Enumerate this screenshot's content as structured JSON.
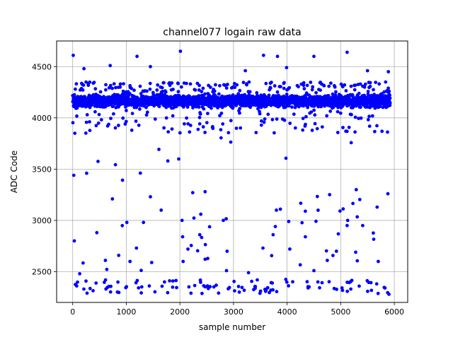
{
  "chart_data": {
    "type": "scatter",
    "title": "channel077 logain raw data",
    "xlabel": "sample number",
    "ylabel": "ADC Code",
    "xlim": [
      -300,
      6250
    ],
    "ylim": [
      2200,
      4750
    ],
    "xticks": [
      0,
      1000,
      2000,
      3000,
      4000,
      5000,
      6000
    ],
    "yticks": [
      2500,
      3000,
      3500,
      4000,
      4500
    ],
    "xtick_labels": [
      "0",
      "1000",
      "2000",
      "3000",
      "4000",
      "5000",
      "6000"
    ],
    "ytick_labels": [
      "2500",
      "3000",
      "3500",
      "4000",
      "4500"
    ],
    "grid": true,
    "marker_color": "#0000ff",
    "x_count": 5923,
    "series": [
      {
        "name": "",
        "description": "dense band ~4080-4250 across full range; sparse scatter 2400-4080; dense low cluster ~2280-2420",
        "outliers": [
          {
            "x": 10,
            "y": 4610
          },
          {
            "x": 30,
            "y": 2800
          },
          {
            "x": 20,
            "y": 3440
          },
          {
            "x": 40,
            "y": 3850
          },
          {
            "x": 130,
            "y": 2480
          },
          {
            "x": 210,
            "y": 4480
          },
          {
            "x": 260,
            "y": 3460
          },
          {
            "x": 450,
            "y": 2880
          },
          {
            "x": 610,
            "y": 2610
          },
          {
            "x": 700,
            "y": 4510
          },
          {
            "x": 740,
            "y": 3210
          },
          {
            "x": 1010,
            "y": 2980
          },
          {
            "x": 1070,
            "y": 2600
          },
          {
            "x": 1200,
            "y": 4600
          },
          {
            "x": 1190,
            "y": 2730
          },
          {
            "x": 1320,
            "y": 2980
          },
          {
            "x": 1450,
            "y": 4500
          },
          {
            "x": 1450,
            "y": 3230
          },
          {
            "x": 1650,
            "y": 3100
          },
          {
            "x": 2010,
            "y": 4650
          },
          {
            "x": 2040,
            "y": 3000
          },
          {
            "x": 2050,
            "y": 2840
          },
          {
            "x": 2060,
            "y": 2600
          },
          {
            "x": 2150,
            "y": 2720
          },
          {
            "x": 2240,
            "y": 3270
          },
          {
            "x": 2370,
            "y": 2860
          },
          {
            "x": 2390,
            "y": 3060
          },
          {
            "x": 2470,
            "y": 3280
          },
          {
            "x": 2810,
            "y": 3000
          },
          {
            "x": 2880,
            "y": 2700
          },
          {
            "x": 2870,
            "y": 2510
          },
          {
            "x": 3280,
            "y": 2490
          },
          {
            "x": 3220,
            "y": 4460
          },
          {
            "x": 3560,
            "y": 4610
          },
          {
            "x": 3550,
            "y": 2730
          },
          {
            "x": 3740,
            "y": 2860
          },
          {
            "x": 3780,
            "y": 2940
          },
          {
            "x": 3800,
            "y": 3100
          },
          {
            "x": 3820,
            "y": 4600
          },
          {
            "x": 3990,
            "y": 4490
          },
          {
            "x": 4030,
            "y": 2990
          },
          {
            "x": 4050,
            "y": 2720
          },
          {
            "x": 4340,
            "y": 2840
          },
          {
            "x": 4340,
            "y": 3090
          },
          {
            "x": 4500,
            "y": 4600
          },
          {
            "x": 4500,
            "y": 2510
          },
          {
            "x": 4750,
            "y": 2610
          },
          {
            "x": 4920,
            "y": 2700
          },
          {
            "x": 5120,
            "y": 4640
          },
          {
            "x": 5120,
            "y": 2950
          },
          {
            "x": 5130,
            "y": 3000
          },
          {
            "x": 5280,
            "y": 2690
          },
          {
            "x": 5290,
            "y": 3300
          },
          {
            "x": 5410,
            "y": 2950
          },
          {
            "x": 5500,
            "y": 4460
          },
          {
            "x": 5680,
            "y": 3130
          },
          {
            "x": 5700,
            "y": 2600
          },
          {
            "x": 5880,
            "y": 3260
          },
          {
            "x": 5890,
            "y": 4450
          },
          {
            "x": 5900,
            "y": 2280
          }
        ]
      }
    ]
  }
}
